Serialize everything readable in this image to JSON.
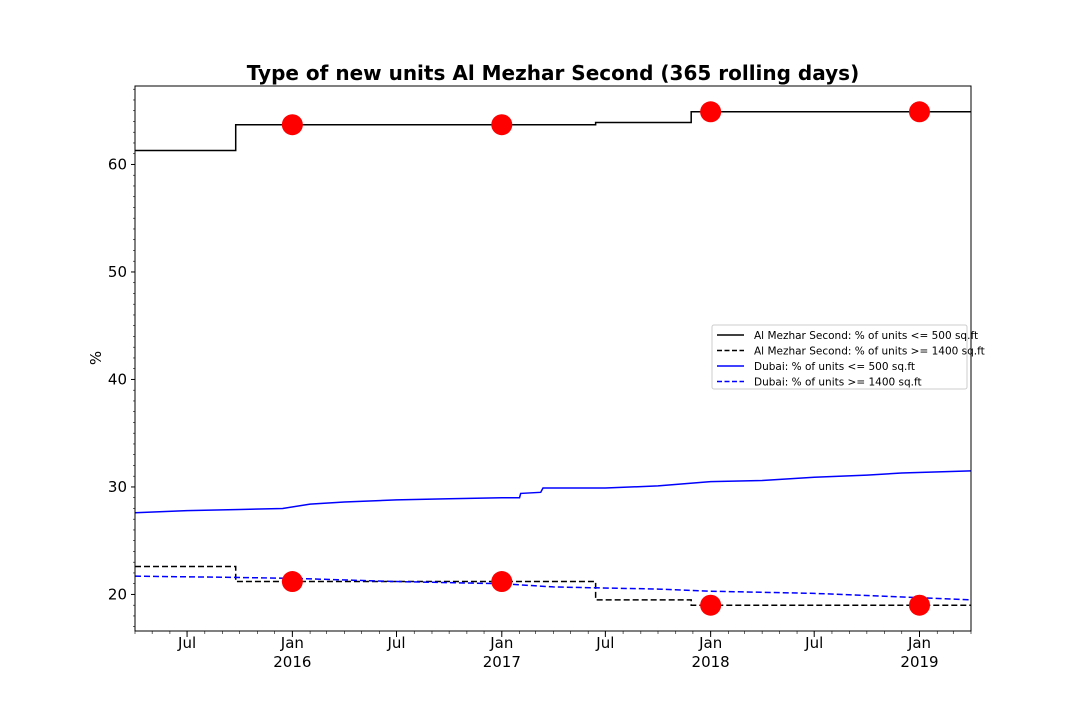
{
  "chart_data": {
    "type": "line",
    "title": "Type of new units Al Mezhar Second (365 rolling days)",
    "xlabel": "",
    "ylabel": "%",
    "xlim": [
      "2015-04-01",
      "2019-04-01"
    ],
    "ylim": [
      16.6,
      67.3
    ],
    "grid": false,
    "legend_position": "center-right",
    "y_ticks": [
      20,
      30,
      40,
      50,
      60
    ],
    "x_ticks": [
      {
        "date": "2015-07-01",
        "label": "Jul",
        "sublabel": ""
      },
      {
        "date": "2016-01-01",
        "label": "Jan",
        "sublabel": "2016"
      },
      {
        "date": "2016-07-01",
        "label": "Jul",
        "sublabel": ""
      },
      {
        "date": "2017-01-01",
        "label": "Jan",
        "sublabel": "2017"
      },
      {
        "date": "2017-07-01",
        "label": "Jul",
        "sublabel": ""
      },
      {
        "date": "2018-01-01",
        "label": "Jan",
        "sublabel": "2018"
      },
      {
        "date": "2018-07-01",
        "label": "Jul",
        "sublabel": ""
      },
      {
        "date": "2019-01-01",
        "label": "Jan",
        "sublabel": "2019"
      }
    ],
    "series": [
      {
        "name": "Al Mezhar Second: % of units <= 500 sq.ft",
        "color": "#000000",
        "dash": "solid",
        "step": true,
        "points": [
          [
            "2015-04-01",
            61.3
          ],
          [
            "2015-09-24",
            61.3
          ],
          [
            "2015-09-24",
            63.7
          ],
          [
            "2017-06-14",
            63.7
          ],
          [
            "2017-06-14",
            63.9
          ],
          [
            "2017-11-28",
            63.9
          ],
          [
            "2017-11-28",
            64.9
          ],
          [
            "2019-04-01",
            64.9
          ]
        ]
      },
      {
        "name": "Al Mezhar Second: % of units >= 1400 sq.ft",
        "color": "#000000",
        "dash": "dashed",
        "step": true,
        "points": [
          [
            "2015-04-01",
            22.6
          ],
          [
            "2015-09-24",
            22.6
          ],
          [
            "2015-09-24",
            21.2
          ],
          [
            "2017-06-14",
            21.2
          ],
          [
            "2017-06-14",
            19.5
          ],
          [
            "2017-11-28",
            19.5
          ],
          [
            "2017-11-28",
            19.0
          ],
          [
            "2019-04-01",
            19.0
          ]
        ]
      },
      {
        "name": "Dubai: % of units <= 500 sq.ft",
        "color": "#0000ff",
        "dash": "solid",
        "step": false,
        "points": [
          [
            "2015-04-01",
            27.6
          ],
          [
            "2015-07-01",
            27.8
          ],
          [
            "2015-10-01",
            27.9
          ],
          [
            "2015-12-15",
            28.0
          ],
          [
            "2016-02-01",
            28.4
          ],
          [
            "2016-04-01",
            28.6
          ],
          [
            "2016-07-01",
            28.8
          ],
          [
            "2016-10-01",
            28.9
          ],
          [
            "2017-01-01",
            29.0
          ],
          [
            "2017-02-01",
            29.0
          ],
          [
            "2017-02-03",
            29.4
          ],
          [
            "2017-03-10",
            29.5
          ],
          [
            "2017-03-14",
            29.9
          ],
          [
            "2017-07-01",
            29.9
          ],
          [
            "2017-10-01",
            30.1
          ],
          [
            "2018-01-01",
            30.5
          ],
          [
            "2018-04-01",
            30.6
          ],
          [
            "2018-07-01",
            30.9
          ],
          [
            "2018-10-01",
            31.1
          ],
          [
            "2018-12-01",
            31.3
          ],
          [
            "2019-04-01",
            31.5
          ]
        ]
      },
      {
        "name": "Dubai: % of units >= 1400 sq.ft",
        "color": "#0000ff",
        "dash": "dashed",
        "step": false,
        "points": [
          [
            "2015-04-01",
            21.7
          ],
          [
            "2015-09-01",
            21.6
          ],
          [
            "2016-01-01",
            21.5
          ],
          [
            "2016-07-01",
            21.2
          ],
          [
            "2017-01-01",
            21.0
          ],
          [
            "2017-04-01",
            20.7
          ],
          [
            "2017-10-01",
            20.5
          ],
          [
            "2018-01-01",
            20.3
          ],
          [
            "2018-07-01",
            20.1
          ],
          [
            "2019-01-01",
            19.7
          ],
          [
            "2019-04-01",
            19.5
          ]
        ]
      }
    ],
    "markers": {
      "color": "#ff0000",
      "points": [
        [
          "2016-01-01",
          63.7
        ],
        [
          "2017-01-01",
          63.7
        ],
        [
          "2018-01-01",
          64.9
        ],
        [
          "2019-01-01",
          64.9
        ],
        [
          "2016-01-01",
          21.2
        ],
        [
          "2017-01-01",
          21.2
        ],
        [
          "2018-01-01",
          19.0
        ],
        [
          "2019-01-01",
          19.0
        ]
      ]
    }
  }
}
